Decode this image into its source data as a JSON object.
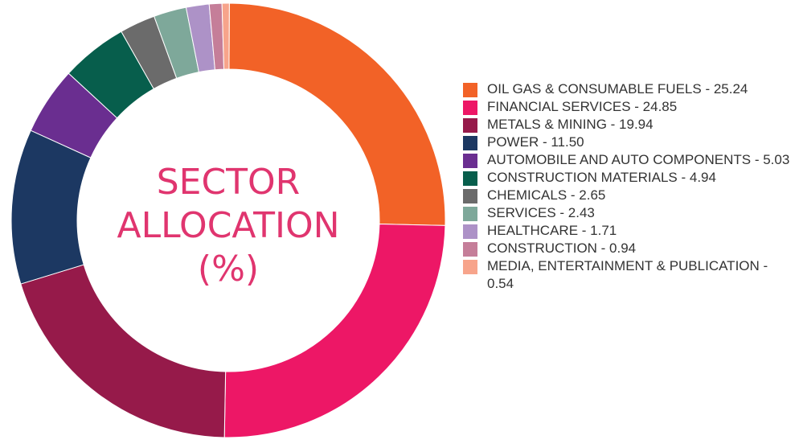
{
  "chart_data": {
    "type": "pie",
    "variant": "donut",
    "title_lines": [
      "SECTOR",
      "ALLOCATION",
      "(%)"
    ],
    "legend_position": "right",
    "series": [
      {
        "label": "OIL GAS & CONSUMABLE FUELS - 25.24",
        "value": 25.24,
        "color": "#f26227"
      },
      {
        "label": "FINANCIAL SERVICES - 24.85",
        "value": 24.85,
        "color": "#ed1766"
      },
      {
        "label": "METALS & MINING - 19.94",
        "value": 19.94,
        "color": "#961a4a"
      },
      {
        "label": "POWER - 11.50",
        "value": 11.5,
        "color": "#1c3862"
      },
      {
        "label": "AUTOMOBILE AND AUTO COMPONENTS - 5.03",
        "value": 5.03,
        "color": "#6a2e90"
      },
      {
        "label": "CONSTRUCTION MATERIALS - 4.94",
        "value": 4.94,
        "color": "#075e4c"
      },
      {
        "label": "CHEMICALS - 2.65",
        "value": 2.65,
        "color": "#6b6b6b"
      },
      {
        "label": "SERVICES - 2.43",
        "value": 2.43,
        "color": "#7ea89a"
      },
      {
        "label": "HEALTHCARE - 1.71",
        "value": 1.71,
        "color": "#ad92c7"
      },
      {
        "label": "CONSTRUCTION - 0.94",
        "value": 0.94,
        "color": "#c57e99"
      },
      {
        "label": "MEDIA, ENTERTAINMENT & PUBLICATION - 0.54",
        "value": 0.54,
        "color": "#f7a48b"
      }
    ]
  }
}
